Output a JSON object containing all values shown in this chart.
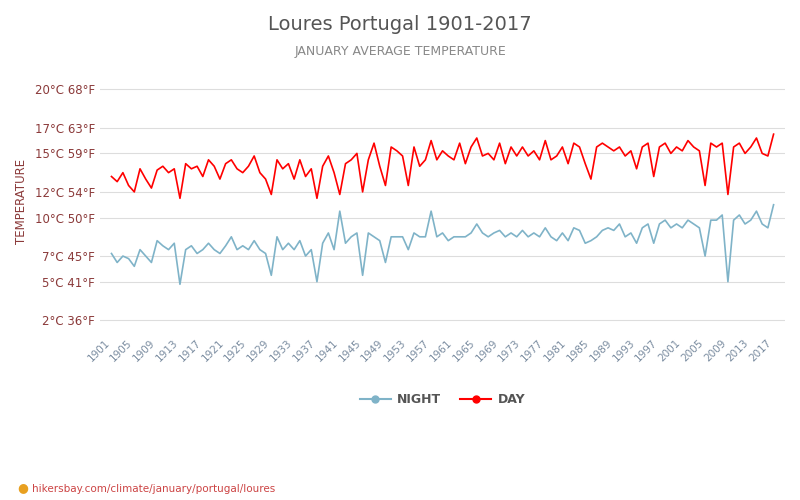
{
  "title": "Loures Portugal 1901-2017",
  "subtitle": "JANUARY AVERAGE TEMPERATURE",
  "ylabel": "TEMPERATURE",
  "url_text": "hikersbay.com/climate/january/portugal/loures",
  "years": [
    1901,
    1902,
    1903,
    1904,
    1905,
    1906,
    1907,
    1908,
    1909,
    1910,
    1911,
    1912,
    1913,
    1914,
    1915,
    1916,
    1917,
    1918,
    1919,
    1920,
    1921,
    1922,
    1923,
    1924,
    1925,
    1926,
    1927,
    1928,
    1929,
    1930,
    1931,
    1932,
    1933,
    1934,
    1935,
    1936,
    1937,
    1938,
    1939,
    1940,
    1941,
    1942,
    1943,
    1944,
    1945,
    1946,
    1947,
    1948,
    1949,
    1950,
    1951,
    1952,
    1953,
    1954,
    1955,
    1956,
    1957,
    1958,
    1959,
    1960,
    1961,
    1962,
    1963,
    1964,
    1965,
    1966,
    1967,
    1968,
    1969,
    1970,
    1971,
    1972,
    1973,
    1974,
    1975,
    1976,
    1977,
    1978,
    1979,
    1980,
    1981,
    1982,
    1983,
    1984,
    1985,
    1986,
    1987,
    1988,
    1989,
    1990,
    1991,
    1992,
    1993,
    1994,
    1995,
    1996,
    1997,
    1998,
    1999,
    2000,
    2001,
    2002,
    2003,
    2004,
    2005,
    2006,
    2007,
    2008,
    2009,
    2010,
    2011,
    2012,
    2013,
    2014,
    2015,
    2016,
    2017
  ],
  "day_temps": [
    13.2,
    12.8,
    13.5,
    12.5,
    12.0,
    13.8,
    13.0,
    12.3,
    13.7,
    14.0,
    13.5,
    13.8,
    11.5,
    14.2,
    13.8,
    14.0,
    13.2,
    14.5,
    14.0,
    13.0,
    14.2,
    14.5,
    13.8,
    13.5,
    14.0,
    14.8,
    13.5,
    13.0,
    11.8,
    14.5,
    13.8,
    14.2,
    13.0,
    14.5,
    13.2,
    13.8,
    11.5,
    14.0,
    14.8,
    13.5,
    11.8,
    14.2,
    14.5,
    15.0,
    12.0,
    14.5,
    15.8,
    14.0,
    12.5,
    15.5,
    15.2,
    14.8,
    12.5,
    15.5,
    14.0,
    14.5,
    16.0,
    14.5,
    15.2,
    14.8,
    14.5,
    15.8,
    14.2,
    15.5,
    16.2,
    14.8,
    15.0,
    14.5,
    15.8,
    14.2,
    15.5,
    14.8,
    15.5,
    14.8,
    15.2,
    14.5,
    16.0,
    14.5,
    14.8,
    15.5,
    14.2,
    15.8,
    15.5,
    14.2,
    13.0,
    15.5,
    15.8,
    15.5,
    15.2,
    15.5,
    14.8,
    15.2,
    13.8,
    15.5,
    15.8,
    13.2,
    15.5,
    15.8,
    15.0,
    15.5,
    15.2,
    16.0,
    15.5,
    15.2,
    12.5,
    15.8,
    15.5,
    15.8,
    11.8,
    15.5,
    15.8,
    15.0,
    15.5,
    16.2,
    15.0,
    14.8,
    16.5
  ],
  "night_temps": [
    7.2,
    6.5,
    7.0,
    6.8,
    6.2,
    7.5,
    7.0,
    6.5,
    8.2,
    7.8,
    7.5,
    8.0,
    4.8,
    7.5,
    7.8,
    7.2,
    7.5,
    8.0,
    7.5,
    7.2,
    7.8,
    8.5,
    7.5,
    7.8,
    7.5,
    8.2,
    7.5,
    7.2,
    5.5,
    8.5,
    7.5,
    8.0,
    7.5,
    8.2,
    7.0,
    7.5,
    5.0,
    8.0,
    8.8,
    7.5,
    10.5,
    8.0,
    8.5,
    8.8,
    5.5,
    8.8,
    8.5,
    8.2,
    6.5,
    8.5,
    8.5,
    8.5,
    7.5,
    8.8,
    8.5,
    8.5,
    10.5,
    8.5,
    8.8,
    8.2,
    8.5,
    8.5,
    8.5,
    8.8,
    9.5,
    8.8,
    8.5,
    8.8,
    9.0,
    8.5,
    8.8,
    8.5,
    9.0,
    8.5,
    8.8,
    8.5,
    9.2,
    8.5,
    8.2,
    8.8,
    8.2,
    9.2,
    9.0,
    8.0,
    8.2,
    8.5,
    9.0,
    9.2,
    9.0,
    9.5,
    8.5,
    8.8,
    8.0,
    9.2,
    9.5,
    8.0,
    9.5,
    9.8,
    9.2,
    9.5,
    9.2,
    9.8,
    9.5,
    9.2,
    7.0,
    9.8,
    9.8,
    10.2,
    5.0,
    9.8,
    10.2,
    9.5,
    9.8,
    10.5,
    9.5,
    9.2,
    11.0
  ],
  "day_color": "#ff0000",
  "night_color": "#7fb3c8",
  "background_color": "#ffffff",
  "grid_color": "#dddddd",
  "title_color": "#555555",
  "subtitle_color": "#888888",
  "ylabel_color": "#8b3a3a",
  "tick_label_color": "#8b3a3a",
  "xtick_color": "#7a8ca0",
  "ytick_celsius": [
    2,
    5,
    7,
    10,
    12,
    15,
    17,
    20
  ],
  "ytick_fahrenheit": [
    36,
    41,
    45,
    50,
    54,
    59,
    63,
    68
  ],
  "ylim_celsius": [
    1.0,
    21.5
  ],
  "legend_night_label": "NIGHT",
  "legend_day_label": "DAY",
  "url_color": "#cc4444",
  "icon_color": "#ffaa00"
}
